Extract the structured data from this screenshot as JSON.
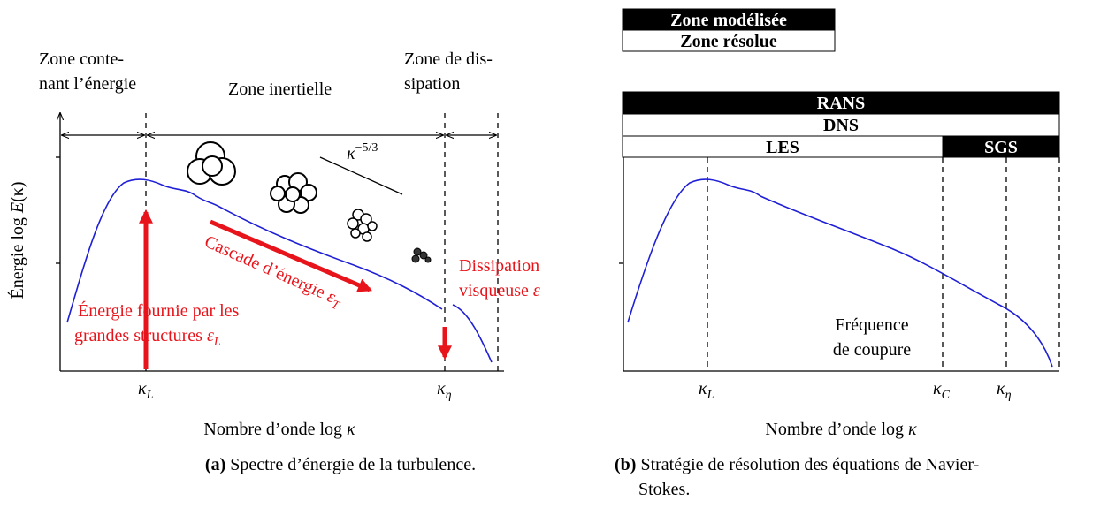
{
  "legend": {
    "modeled": "Zone modélisée",
    "resolved": "Zone résolue"
  },
  "panel_a": {
    "zones": {
      "energy": [
        "Zone conte-",
        "nant l’énergie"
      ],
      "inertial": "Zone inertielle",
      "dissipation": [
        "Zone de dis-",
        "sipation"
      ]
    },
    "y_label": {
      "text": "Énergie log ",
      "var": "E",
      "arg": "(κ)"
    },
    "x_label": {
      "text": "Nombre d’onde log ",
      "var": "κ"
    },
    "x_ticks": [
      {
        "symbol": "κ",
        "sub": "L"
      },
      {
        "symbol": "κ",
        "sub": "η"
      }
    ],
    "slope": {
      "symbol": "κ",
      "sup": "−5/3"
    },
    "cascade": {
      "text": "Cascade d’énergie ",
      "symbol": "ε",
      "sub": "T"
    },
    "injection": {
      "line1": "Énergie fournie par les",
      "line2": "grandes structures ",
      "symbol": "ε",
      "sub": "L"
    },
    "dissipation_label": {
      "line1": "Dissipation",
      "line2": "visqueuse ",
      "symbol": "ε"
    },
    "caption": {
      "tag": "(a)",
      "text": "Spectre d’énergie de la turbulence."
    }
  },
  "panel_b": {
    "bars": {
      "rans": "RANS",
      "dns": "DNS",
      "les": "LES",
      "sgs": "SGS"
    },
    "x_ticks": [
      {
        "symbol": "κ",
        "sub": "L"
      },
      {
        "symbol": "κ",
        "sub": "C"
      },
      {
        "symbol": "κ",
        "sub": "η"
      }
    ],
    "cutoff": [
      "Fréquence",
      "de coupure"
    ],
    "x_label": {
      "text": "Nombre d’onde log ",
      "var": "κ"
    },
    "caption": {
      "tag": "(b)",
      "line1": "Stratégie de résolution des équations de Navier-",
      "line2": "Stokes."
    }
  }
}
